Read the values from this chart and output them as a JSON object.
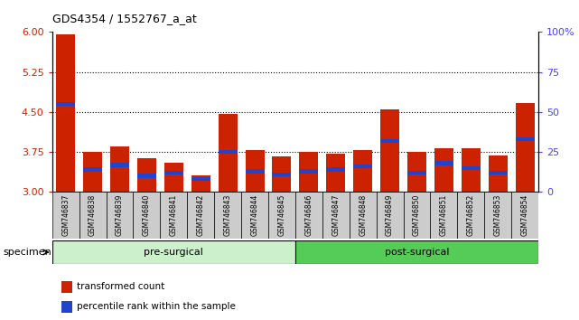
{
  "title": "GDS4354 / 1552767_a_at",
  "samples": [
    "GSM746837",
    "GSM746838",
    "GSM746839",
    "GSM746840",
    "GSM746841",
    "GSM746842",
    "GSM746843",
    "GSM746844",
    "GSM746845",
    "GSM746846",
    "GSM746847",
    "GSM746848",
    "GSM746849",
    "GSM746850",
    "GSM746851",
    "GSM746852",
    "GSM746853",
    "GSM746854"
  ],
  "red_values": [
    5.95,
    3.75,
    3.85,
    3.63,
    3.55,
    3.32,
    4.47,
    3.78,
    3.67,
    3.76,
    3.72,
    3.78,
    4.55,
    3.75,
    3.82,
    3.82,
    3.68,
    4.67
  ],
  "percentile_values": [
    55,
    14,
    17,
    10,
    12,
    8,
    25,
    13,
    11,
    13,
    14,
    16,
    32,
    12,
    18,
    15,
    12,
    33
  ],
  "ymin": 3.0,
  "ymax": 6.0,
  "yticks": [
    3.0,
    3.75,
    4.5,
    5.25,
    6.0
  ],
  "right_yticks": [
    0,
    25,
    50,
    75,
    100
  ],
  "groups": [
    {
      "label": "pre-surgical",
      "start": 0,
      "end": 9,
      "color": "#ccf0cc"
    },
    {
      "label": "post-surgical",
      "start": 9,
      "end": 18,
      "color": "#55cc55"
    }
  ],
  "bar_color": "#cc2200",
  "blue_color": "#2244cc",
  "bar_width": 0.7,
  "background_color": "#ffffff",
  "tick_color_left": "#cc2200",
  "tick_color_right": "#4444ff",
  "legend_red_label": "transformed count",
  "legend_blue_label": "percentile rank within the sample",
  "label_bg_color": "#cccccc",
  "specimen_label": "specimen"
}
